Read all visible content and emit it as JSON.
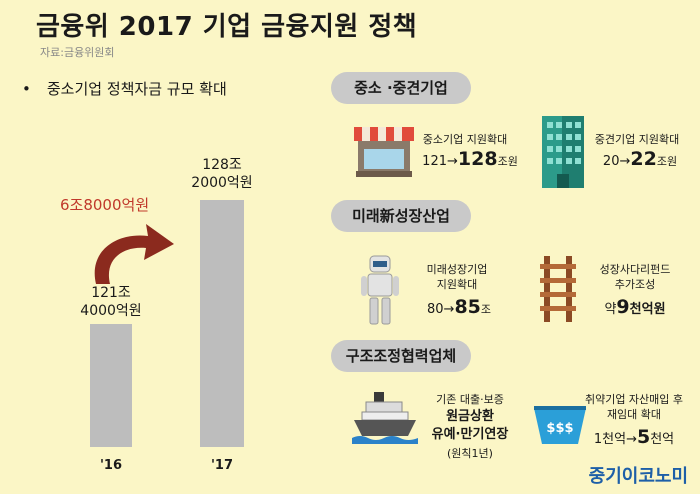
{
  "header": {
    "title": "금융위 2017 기업 금융지원 정책",
    "source": "자료:금융위원회"
  },
  "left": {
    "bullet": "•",
    "heading": "중소기업 정책자금 규모 확대",
    "increase_label": "6조8000억원"
  },
  "chart_data": {
    "type": "bar",
    "categories": [
      "'16",
      "'17"
    ],
    "values_label": [
      "121조\n4000억원",
      "128조\n2000억원"
    ],
    "values": [
      121.4,
      128.2
    ],
    "label_lines": [
      [
        "121조",
        "4000억원"
      ],
      [
        "128조",
        "2000억원"
      ]
    ],
    "colors": {
      "bar": "#bdbdbd",
      "arrow": "#8b2a1e"
    }
  },
  "sections": {
    "s1": {
      "title": "중소 ·중견기업",
      "items": [
        {
          "icon": "shop-icon",
          "label": "중소기업 지원확대",
          "from": "121",
          "arrow": "→",
          "to": "128",
          "unit": "조원"
        },
        {
          "icon": "building-icon",
          "label": "중견기업 지원확대",
          "from": "20",
          "arrow": "→",
          "to": "22",
          "unit": "조원"
        }
      ]
    },
    "s2": {
      "title": "미래新성장산업",
      "items": [
        {
          "icon": "robot-icon",
          "label_line1": "미래성장기업",
          "label_line2": "지원확대",
          "from": "80",
          "arrow": "→",
          "to": "85",
          "unit": "조"
        },
        {
          "icon": "ladder-icon",
          "label_line1": "성장사다리펀드",
          "label_line2": "추가조성",
          "prefix": "약",
          "to": "9",
          "unit": "천억원"
        }
      ]
    },
    "s3": {
      "title": "구조조정협력업체",
      "items": [
        {
          "icon": "ship-icon",
          "label": "기존 대출·보증",
          "bold1": "원금상환",
          "bold2": "유예·만기연장",
          "note": "(원칙1년)"
        },
        {
          "icon": "basket-icon",
          "label_line1": "취약기업 자산매입 후",
          "label_line2": "재임대 확대",
          "from": "1천억",
          "arrow": "→",
          "to": "5",
          "unit": "천억"
        }
      ]
    }
  },
  "footer": {
    "brand": "중기이코노미"
  }
}
